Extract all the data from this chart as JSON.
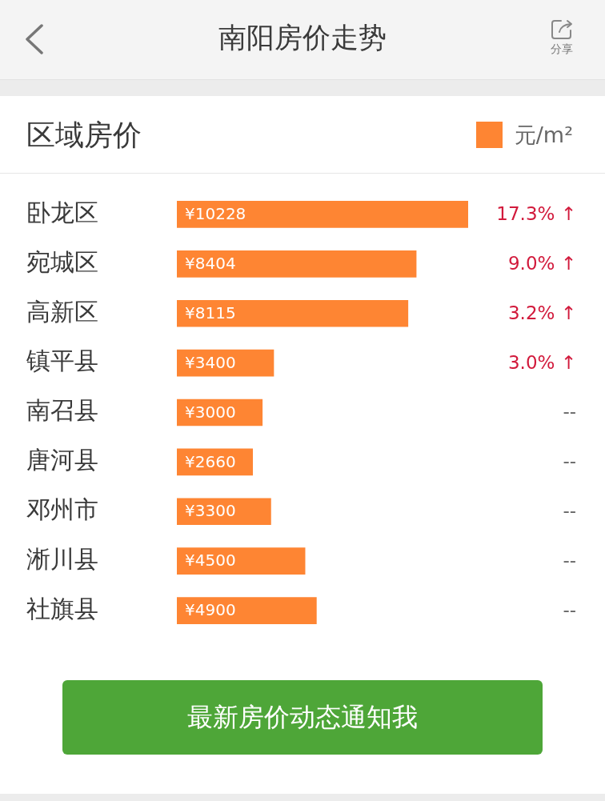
{
  "chart_data": {
    "type": "bar",
    "orientation": "horizontal",
    "title": "南阳房价走势",
    "subtitle": "区域房价",
    "categories": [
      "卧龙区",
      "宛城区",
      "高新区",
      "镇平县",
      "南召县",
      "唐河县",
      "邓州市",
      "淅川县",
      "社旗县"
    ],
    "series": [
      {
        "name": "元/m²",
        "color": "#fe8533",
        "values": [
          10228,
          8404,
          8115,
          3400,
          3000,
          2660,
          3300,
          4500,
          4900
        ],
        "value_labels": [
          "¥10228",
          "¥8404",
          "¥8115",
          "¥3400",
          "¥3000",
          "¥2660",
          "¥3300",
          "¥4500",
          "¥4900"
        ]
      }
    ],
    "xlim": [
      0,
      10228
    ],
    "legend": "top right",
    "tick_labels": "y",
    "annotations": [
      "分享",
      "17.3% ↑",
      "9.0% ↑",
      "3.2% ↑",
      "3.0% ↑",
      "--",
      "--",
      "--",
      "--",
      "--",
      "最新房价动态通知我"
    ]
  }
}
